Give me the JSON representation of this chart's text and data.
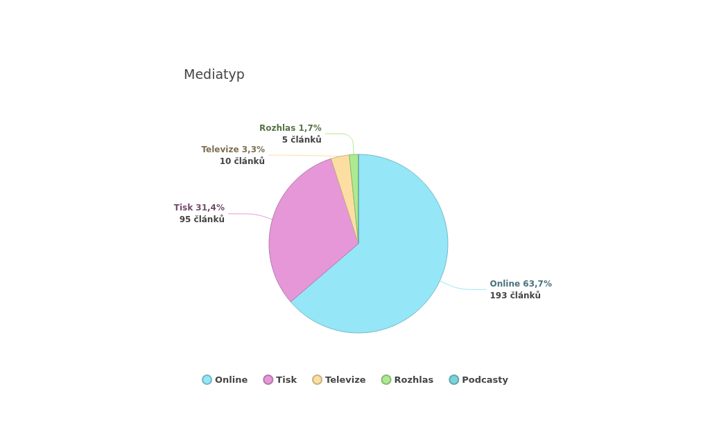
{
  "chart_data": {
    "type": "pie",
    "title": "Mediatyp",
    "categories": [
      "Online",
      "Tisk",
      "Televize",
      "Rozhlas",
      "Podcasty"
    ],
    "values": [
      193,
      95,
      10,
      5,
      0
    ],
    "colors": [
      "#95e6f7",
      "#e597d8",
      "#fcdea3",
      "#acea8f",
      "#7bd3d8"
    ],
    "value_labels": [
      "63,7%\n193 článků",
      "31,4%\n95 článků",
      "3,3%\n10 článků",
      "1,7%\n5 článků",
      null
    ],
    "legend": "bottom"
  }
}
